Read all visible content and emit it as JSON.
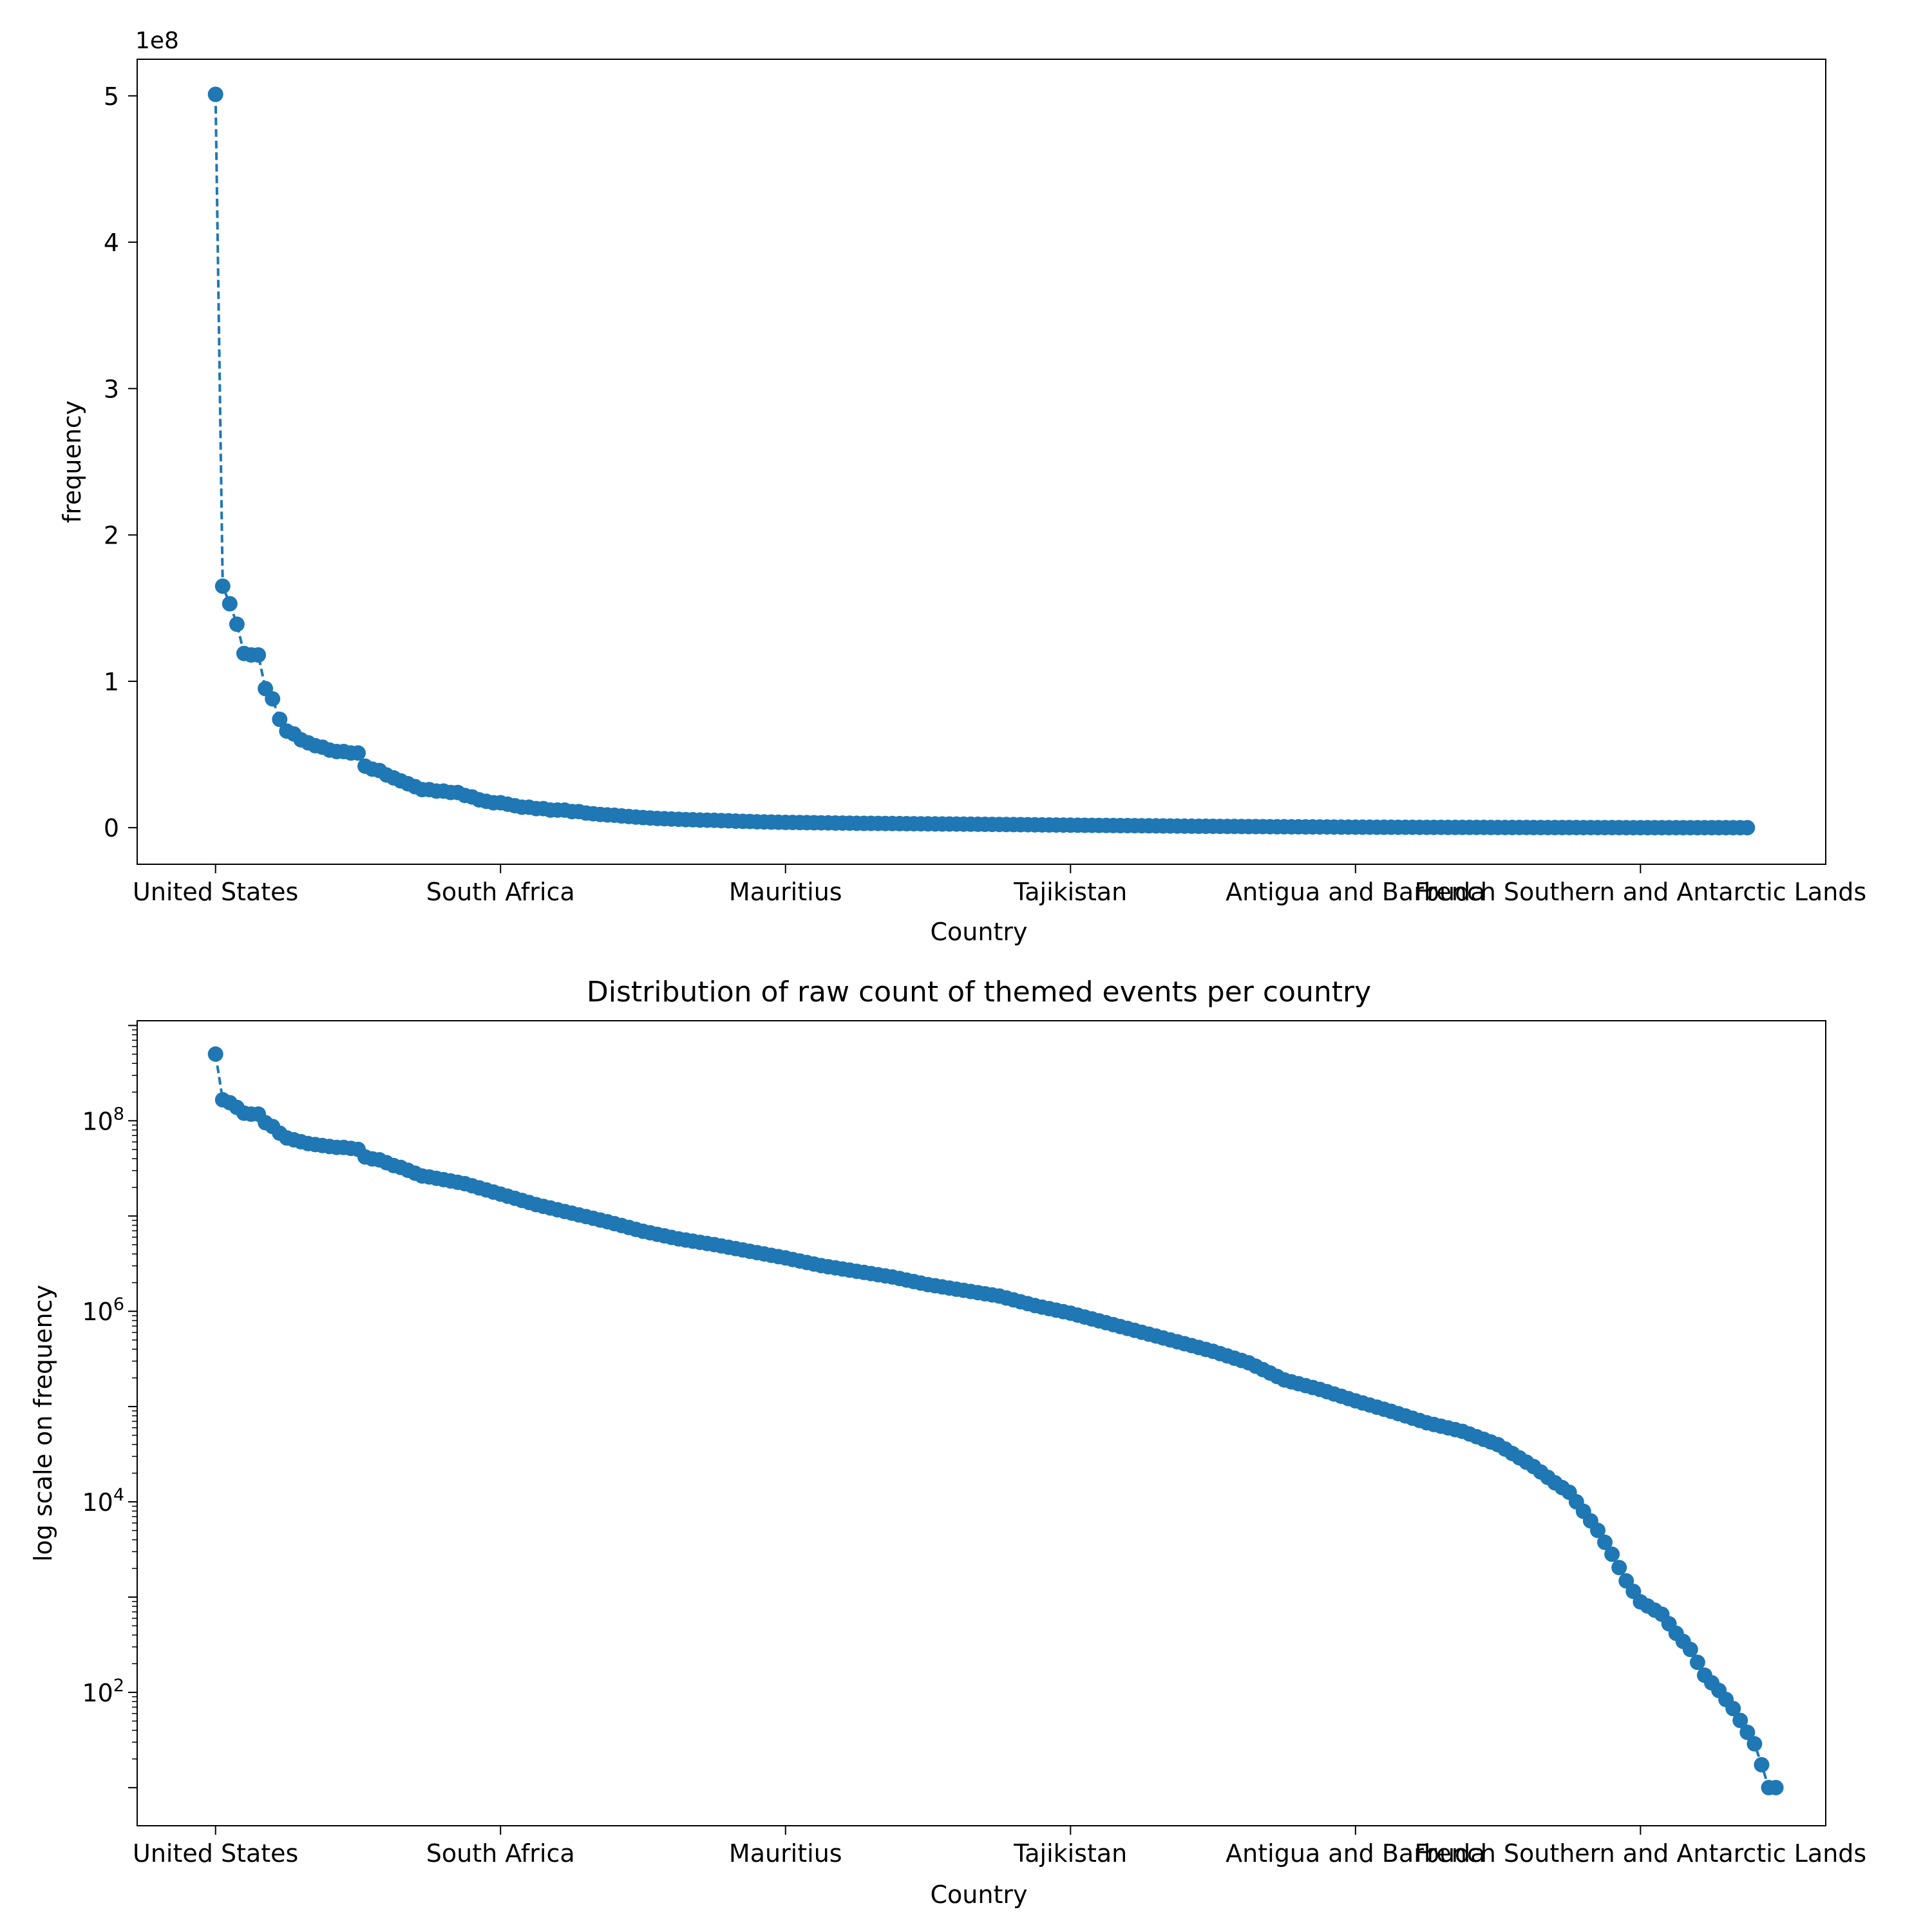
{
  "chart_data": [
    {
      "type": "line",
      "title": "",
      "xlabel": "Country",
      "ylabel": "frequency",
      "yscale": "linear",
      "offset_text": "1e8",
      "x_tick_labels": [
        "United States",
        "South Africa",
        "Mauritius",
        "Tajikistan",
        "Antigua and Barbuda",
        "French Southern and Antarctic Lands"
      ],
      "x_tick_positions": [
        0,
        40,
        80,
        120,
        160,
        200
      ],
      "y_ticks": [
        0,
        1,
        2,
        3,
        4,
        5
      ],
      "y_units": "1e8",
      "ylim": [
        -0.25,
        5.25
      ],
      "xlim": [
        -11,
        226
      ],
      "marker": "circle",
      "line_style": "dashed",
      "color": "#1f77b4",
      "grid": false,
      "series": [
        {
          "points_index_and_value_1e8": [
            [
              0,
              5.01
            ],
            [
              1,
              1.65
            ],
            [
              2,
              1.53
            ],
            [
              3,
              1.39
            ],
            [
              4,
              1.19
            ],
            [
              5,
              1.18
            ],
            [
              6,
              1.18
            ],
            [
              7,
              0.95
            ],
            [
              8,
              0.88
            ],
            [
              9,
              0.74
            ],
            [
              10,
              0.66
            ],
            [
              11,
              0.64
            ],
            [
              12,
              0.6
            ],
            [
              13,
              0.58
            ],
            [
              14,
              0.56
            ],
            [
              15,
              0.55
            ],
            [
              16,
              0.53
            ],
            [
              17,
              0.52
            ],
            [
              18,
              0.52
            ],
            [
              19,
              0.51
            ],
            [
              20,
              0.51
            ],
            [
              21,
              0.42
            ],
            [
              22,
              0.4
            ],
            [
              23,
              0.39
            ],
            [
              24,
              0.36
            ],
            [
              25,
              0.34
            ],
            [
              26,
              0.32
            ],
            [
              27,
              0.3
            ],
            [
              28,
              0.28
            ],
            [
              29,
              0.26
            ],
            [
              30,
              0.26
            ],
            [
              31,
              0.25
            ],
            [
              32,
              0.25
            ],
            [
              33,
              0.24
            ],
            [
              34,
              0.24
            ],
            [
              35,
              0.22
            ],
            [
              36,
              0.21
            ],
            [
              37,
              0.19
            ],
            [
              38,
              0.18
            ],
            [
              39,
              0.17
            ],
            [
              40,
              0.17
            ],
            [
              41,
              0.16
            ],
            [
              42,
              0.15
            ],
            [
              43,
              0.14
            ],
            [
              44,
              0.14
            ],
            [
              45,
              0.13
            ],
            [
              46,
              0.13
            ],
            [
              47,
              0.12
            ],
            [
              48,
              0.12
            ],
            [
              49,
              0.12
            ],
            [
              50,
              0.11
            ],
            [
              51,
              0.11
            ],
            [
              52,
              0.1
            ],
            [
              53,
              0.095
            ],
            [
              54,
              0.09
            ],
            [
              55,
              0.087
            ],
            [
              56,
              0.085
            ],
            [
              57,
              0.08
            ],
            [
              58,
              0.076
            ],
            [
              59,
              0.072
            ],
            [
              60,
              0.069
            ],
            [
              61,
              0.066
            ],
            [
              62,
              0.063
            ],
            [
              63,
              0.061
            ],
            [
              64,
              0.059
            ],
            [
              65,
              0.057
            ],
            [
              66,
              0.055
            ],
            [
              67,
              0.054
            ],
            [
              68,
              0.052
            ],
            [
              69,
              0.051
            ],
            [
              70,
              0.05
            ],
            [
              71,
              0.048
            ],
            [
              72,
              0.047
            ],
            [
              73,
              0.045
            ],
            [
              74,
              0.043
            ],
            [
              75,
              0.042
            ],
            [
              76,
              0.04
            ],
            [
              77,
              0.039
            ],
            [
              78,
              0.038
            ],
            [
              79,
              0.037
            ],
            [
              80,
              0.036
            ],
            [
              90,
              0.03
            ],
            [
              100,
              0.026
            ],
            [
              110,
              0.022
            ],
            [
              120,
              0.017
            ],
            [
              130,
              0.013
            ],
            [
              140,
              0.009
            ],
            [
              150,
              0.006
            ],
            [
              160,
              0.0036
            ],
            [
              170,
              0.0021
            ],
            [
              180,
              0.0013
            ],
            [
              190,
              0.0007
            ],
            [
              195,
              0.0003
            ],
            [
              200,
              8e-07
            ],
            [
              210,
              4e-07
            ],
            [
              215,
              1e-07
            ]
          ]
        }
      ]
    },
    {
      "type": "line",
      "title": "Distribution of raw count of themed events per country",
      "xlabel": "Country",
      "ylabel": "log scale on frequency",
      "yscale": "log",
      "x_tick_labels": [
        "United States",
        "South Africa",
        "Mauritius",
        "Tajikistan",
        "Antigua and Barbuda",
        "French Southern and Antarctic Lands"
      ],
      "x_tick_positions": [
        0,
        40,
        80,
        120,
        160,
        200
      ],
      "y_tick_labels": [
        {
          "base": "10",
          "exp": "2",
          "value": 100
        },
        {
          "base": "10",
          "exp": "4",
          "value": 10000
        },
        {
          "base": "10",
          "exp": "6",
          "value": 1000000
        },
        {
          "base": "10",
          "exp": "8",
          "value": 100000000
        }
      ],
      "ylim_log10": [
        0.6,
        9.05
      ],
      "xlim": [
        -11,
        226
      ],
      "marker": "circle",
      "line_style": "dashed",
      "color": "#1f77b4",
      "grid": false,
      "series": [
        {
          "points_index_and_log10_value": [
            [
              0,
              8.7
            ],
            [
              1,
              8.22
            ],
            [
              2,
              8.19
            ],
            [
              3,
              8.14
            ],
            [
              4,
              8.08
            ],
            [
              5,
              8.07
            ],
            [
              6,
              8.07
            ],
            [
              7,
              7.98
            ],
            [
              8,
              7.94
            ],
            [
              9,
              7.87
            ],
            [
              10,
              7.82
            ],
            [
              11,
              7.8
            ],
            [
              12,
              7.78
            ],
            [
              13,
              7.76
            ],
            [
              14,
              7.75
            ],
            [
              15,
              7.74
            ],
            [
              16,
              7.73
            ],
            [
              17,
              7.72
            ],
            [
              18,
              7.72
            ],
            [
              19,
              7.71
            ],
            [
              20,
              7.7
            ],
            [
              21,
              7.62
            ],
            [
              22,
              7.6
            ],
            [
              23,
              7.59
            ],
            [
              24,
              7.56
            ],
            [
              25,
              7.53
            ],
            [
              26,
              7.51
            ],
            [
              27,
              7.48
            ],
            [
              28,
              7.45
            ],
            [
              29,
              7.42
            ],
            [
              30,
              7.41
            ],
            [
              35,
              7.34
            ],
            [
              40,
              7.23
            ],
            [
              45,
              7.12
            ],
            [
              50,
              7.03
            ],
            [
              55,
              6.94
            ],
            [
              60,
              6.84
            ],
            [
              65,
              6.76
            ],
            [
              70,
              6.7
            ],
            [
              75,
              6.63
            ],
            [
              80,
              6.56
            ],
            [
              85,
              6.48
            ],
            [
              90,
              6.42
            ],
            [
              95,
              6.36
            ],
            [
              100,
              6.28
            ],
            [
              105,
              6.22
            ],
            [
              110,
              6.16
            ],
            [
              115,
              6.06
            ],
            [
              120,
              5.98
            ],
            [
              125,
              5.88
            ],
            [
              130,
              5.78
            ],
            [
              135,
              5.68
            ],
            [
              140,
              5.58
            ],
            [
              145,
              5.46
            ],
            [
              150,
              5.28
            ],
            [
              155,
              5.18
            ],
            [
              160,
              5.06
            ],
            [
              165,
              4.95
            ],
            [
              170,
              4.83
            ],
            [
              175,
              4.74
            ],
            [
              180,
              4.6
            ],
            [
              185,
              4.37
            ],
            [
              188,
              4.2
            ],
            [
              190,
              4.1
            ],
            [
              192,
              3.9
            ],
            [
              194,
              3.7
            ],
            [
              196,
              3.45
            ],
            [
              198,
              3.17
            ],
            [
              200,
              2.95
            ],
            [
              203,
              2.82
            ],
            [
              205,
              2.62
            ],
            [
              207,
              2.45
            ],
            [
              209,
              2.18
            ],
            [
              211,
              2.02
            ],
            [
              213,
              1.83
            ],
            [
              215,
              1.58
            ],
            [
              216,
              1.46
            ],
            [
              217,
              1.24
            ],
            [
              218,
              1.0
            ],
            [
              219,
              1.0
            ]
          ]
        }
      ]
    }
  ]
}
